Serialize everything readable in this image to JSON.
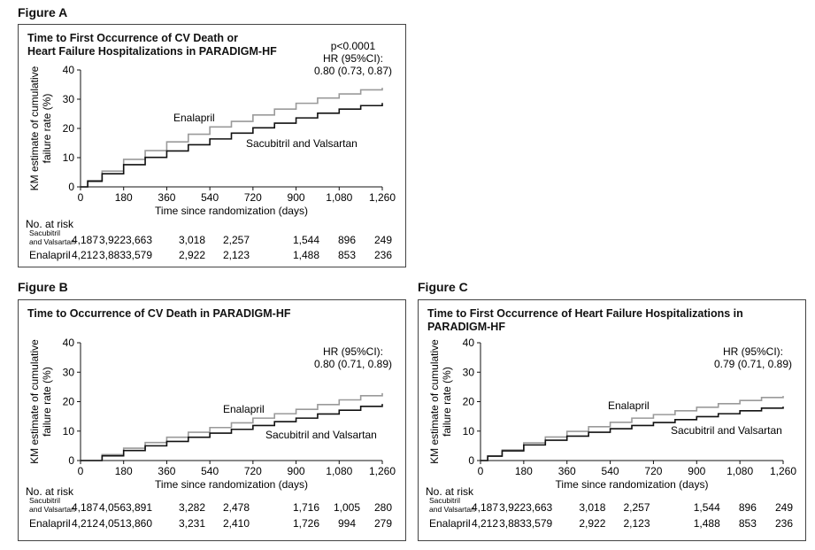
{
  "figures": [
    {
      "label": "Figure A",
      "title": [
        "Time to First Occurrence of CV Death or",
        "Heart Failure Hospitalizations in PARADIGM-HF"
      ]
    },
    {
      "label": "Figure B",
      "title": [
        "Time to Occurrence of CV Death in PARADIGM-HF"
      ]
    },
    {
      "label": "Figure C",
      "title": [
        "Time to First Occurrence of Heart Failure Hospitalizations in PARADIGM-HF"
      ]
    }
  ],
  "chart_data": [
    {
      "type": "line",
      "title": "Time to First Occurrence of CV Death or Heart Failure Hospitalizations in PARADIGM-HF",
      "xlabel": "Time since randomization (days)",
      "ylabel": [
        "KM estimate of cumulative",
        "failure rate (%)"
      ],
      "xlim": [
        0,
        1260
      ],
      "ylim": [
        0,
        40
      ],
      "x_ticks": [
        "0",
        "180",
        "360",
        "540",
        "720",
        "900",
        "1,080",
        "1,260"
      ],
      "y_ticks": [
        "0",
        "10",
        "20",
        "30",
        "40"
      ],
      "annotation": [
        "p<0.0001",
        "HR (95%CI):",
        "0.80 (0.73, 0.87)"
      ],
      "series": [
        {
          "name": "Enalapril",
          "color": "#9a9a9a",
          "x": [
            0,
            30,
            90,
            180,
            270,
            360,
            450,
            540,
            630,
            720,
            810,
            900,
            990,
            1080,
            1170,
            1260
          ],
          "y": [
            0,
            2.2,
            5.4,
            9.4,
            12.4,
            15.4,
            18.0,
            20.5,
            22.4,
            24.6,
            26.6,
            28.6,
            30.4,
            31.8,
            33.2,
            33.9
          ]
        },
        {
          "name": "Sacubitril and Valsartan",
          "color": "#111111",
          "x": [
            0,
            30,
            90,
            180,
            270,
            360,
            450,
            540,
            630,
            720,
            810,
            900,
            990,
            1080,
            1170,
            1260
          ],
          "y": [
            0,
            1.9,
            4.5,
            7.6,
            10.1,
            12.3,
            14.4,
            16.4,
            18.4,
            20.2,
            21.8,
            23.6,
            25.2,
            26.6,
            27.8,
            28.7
          ]
        }
      ],
      "at_risk": {
        "header": "No. at risk",
        "rows": [
          {
            "label": [
              "Sacubitril",
              "and Valsartan"
            ],
            "values": [
              "4,187",
              "3,922",
              "3,663",
              "3,018",
              "2,257",
              "1,544",
              "896",
              "249"
            ]
          },
          {
            "label": [
              "Enalapril"
            ],
            "values": [
              "4,212",
              "3,883",
              "3,579",
              "2,922",
              "2,123",
              "1,488",
              "853",
              "236"
            ]
          }
        ]
      }
    },
    {
      "type": "line",
      "title": "Time to Occurrence of CV Death in PARADIGM-HF",
      "xlabel": "Time since randomization (days)",
      "ylabel": [
        "KM estimate of cumulative",
        "failure rate (%)"
      ],
      "xlim": [
        0,
        1260
      ],
      "ylim": [
        0,
        40
      ],
      "x_ticks": [
        "0",
        "180",
        "360",
        "540",
        "720",
        "900",
        "1,080",
        "1,260"
      ],
      "y_ticks": [
        "0",
        "10",
        "20",
        "30",
        "40"
      ],
      "annotation": [
        "HR (95%CI):",
        "0.80 (0.71, 0.89)"
      ],
      "series": [
        {
          "name": "Enalapril",
          "color": "#9a9a9a",
          "x": [
            0,
            90,
            180,
            270,
            360,
            450,
            540,
            630,
            720,
            810,
            900,
            990,
            1080,
            1170,
            1260
          ],
          "y": [
            0,
            2.0,
            4.2,
            6.1,
            7.9,
            9.6,
            11.2,
            12.8,
            14.4,
            15.9,
            17.4,
            19.0,
            20.6,
            22.0,
            22.9
          ]
        },
        {
          "name": "Sacubitril and Valsartan",
          "color": "#111111",
          "x": [
            0,
            90,
            180,
            270,
            360,
            450,
            540,
            630,
            720,
            810,
            900,
            990,
            1080,
            1170,
            1260
          ],
          "y": [
            0,
            1.6,
            3.4,
            5.0,
            6.5,
            7.9,
            9.3,
            10.6,
            11.9,
            13.2,
            14.4,
            15.8,
            17.1,
            18.4,
            19.2
          ]
        }
      ],
      "at_risk": {
        "header": "No. at risk",
        "rows": [
          {
            "label": [
              "Sacubitril",
              "and Valsartan"
            ],
            "values": [
              "4,187",
              "4,056",
              "3,891",
              "3,282",
              "2,478",
              "1,716",
              "1,005",
              "280"
            ]
          },
          {
            "label": [
              "Enalapril"
            ],
            "values": [
              "4,212",
              "4,051",
              "3,860",
              "3,231",
              "2,410",
              "1,726",
              "994",
              "279"
            ]
          }
        ]
      }
    },
    {
      "type": "line",
      "title": "Time to First Occurrence of Heart Failure Hospitalizations in PARADIGM-HF",
      "xlabel": "Time since randomization (days)",
      "ylabel": [
        "KM estimate of cumulative",
        "failure rate (%)"
      ],
      "xlim": [
        0,
        1260
      ],
      "ylim": [
        0,
        40
      ],
      "x_ticks": [
        "0",
        "180",
        "360",
        "540",
        "720",
        "900",
        "1,080",
        "1,260"
      ],
      "y_ticks": [
        "0",
        "10",
        "20",
        "30",
        "40"
      ],
      "annotation": [
        "HR (95%CI):",
        "0.79 (0.71, 0.89)"
      ],
      "series": [
        {
          "name": "Enalapril",
          "color": "#9a9a9a",
          "x": [
            0,
            30,
            90,
            180,
            270,
            360,
            450,
            540,
            630,
            720,
            810,
            900,
            990,
            1080,
            1170,
            1260
          ],
          "y": [
            0,
            1.6,
            3.6,
            6.0,
            8.0,
            9.9,
            11.5,
            13.0,
            14.4,
            15.6,
            16.9,
            18.1,
            19.3,
            20.4,
            21.4,
            21.9
          ]
        },
        {
          "name": "Sacubitril and Valsartan",
          "color": "#111111",
          "x": [
            0,
            30,
            90,
            180,
            270,
            360,
            450,
            540,
            630,
            720,
            810,
            900,
            990,
            1080,
            1170,
            1260
          ],
          "y": [
            0,
            1.5,
            3.3,
            5.3,
            6.9,
            8.3,
            9.6,
            10.8,
            11.9,
            12.9,
            13.9,
            14.9,
            15.9,
            16.9,
            17.8,
            18.3
          ]
        }
      ],
      "at_risk": {
        "header": "No. at risk",
        "rows": [
          {
            "label": [
              "Sacubitril",
              "and Valsartan"
            ],
            "values": [
              "4,187",
              "3,922",
              "3,663",
              "3,018",
              "2,257",
              "1,544",
              "896",
              "249"
            ]
          },
          {
            "label": [
              "Enalapril"
            ],
            "values": [
              "4,212",
              "3,883",
              "3,579",
              "2,922",
              "2,123",
              "1,488",
              "853",
              "236"
            ]
          }
        ]
      }
    }
  ]
}
